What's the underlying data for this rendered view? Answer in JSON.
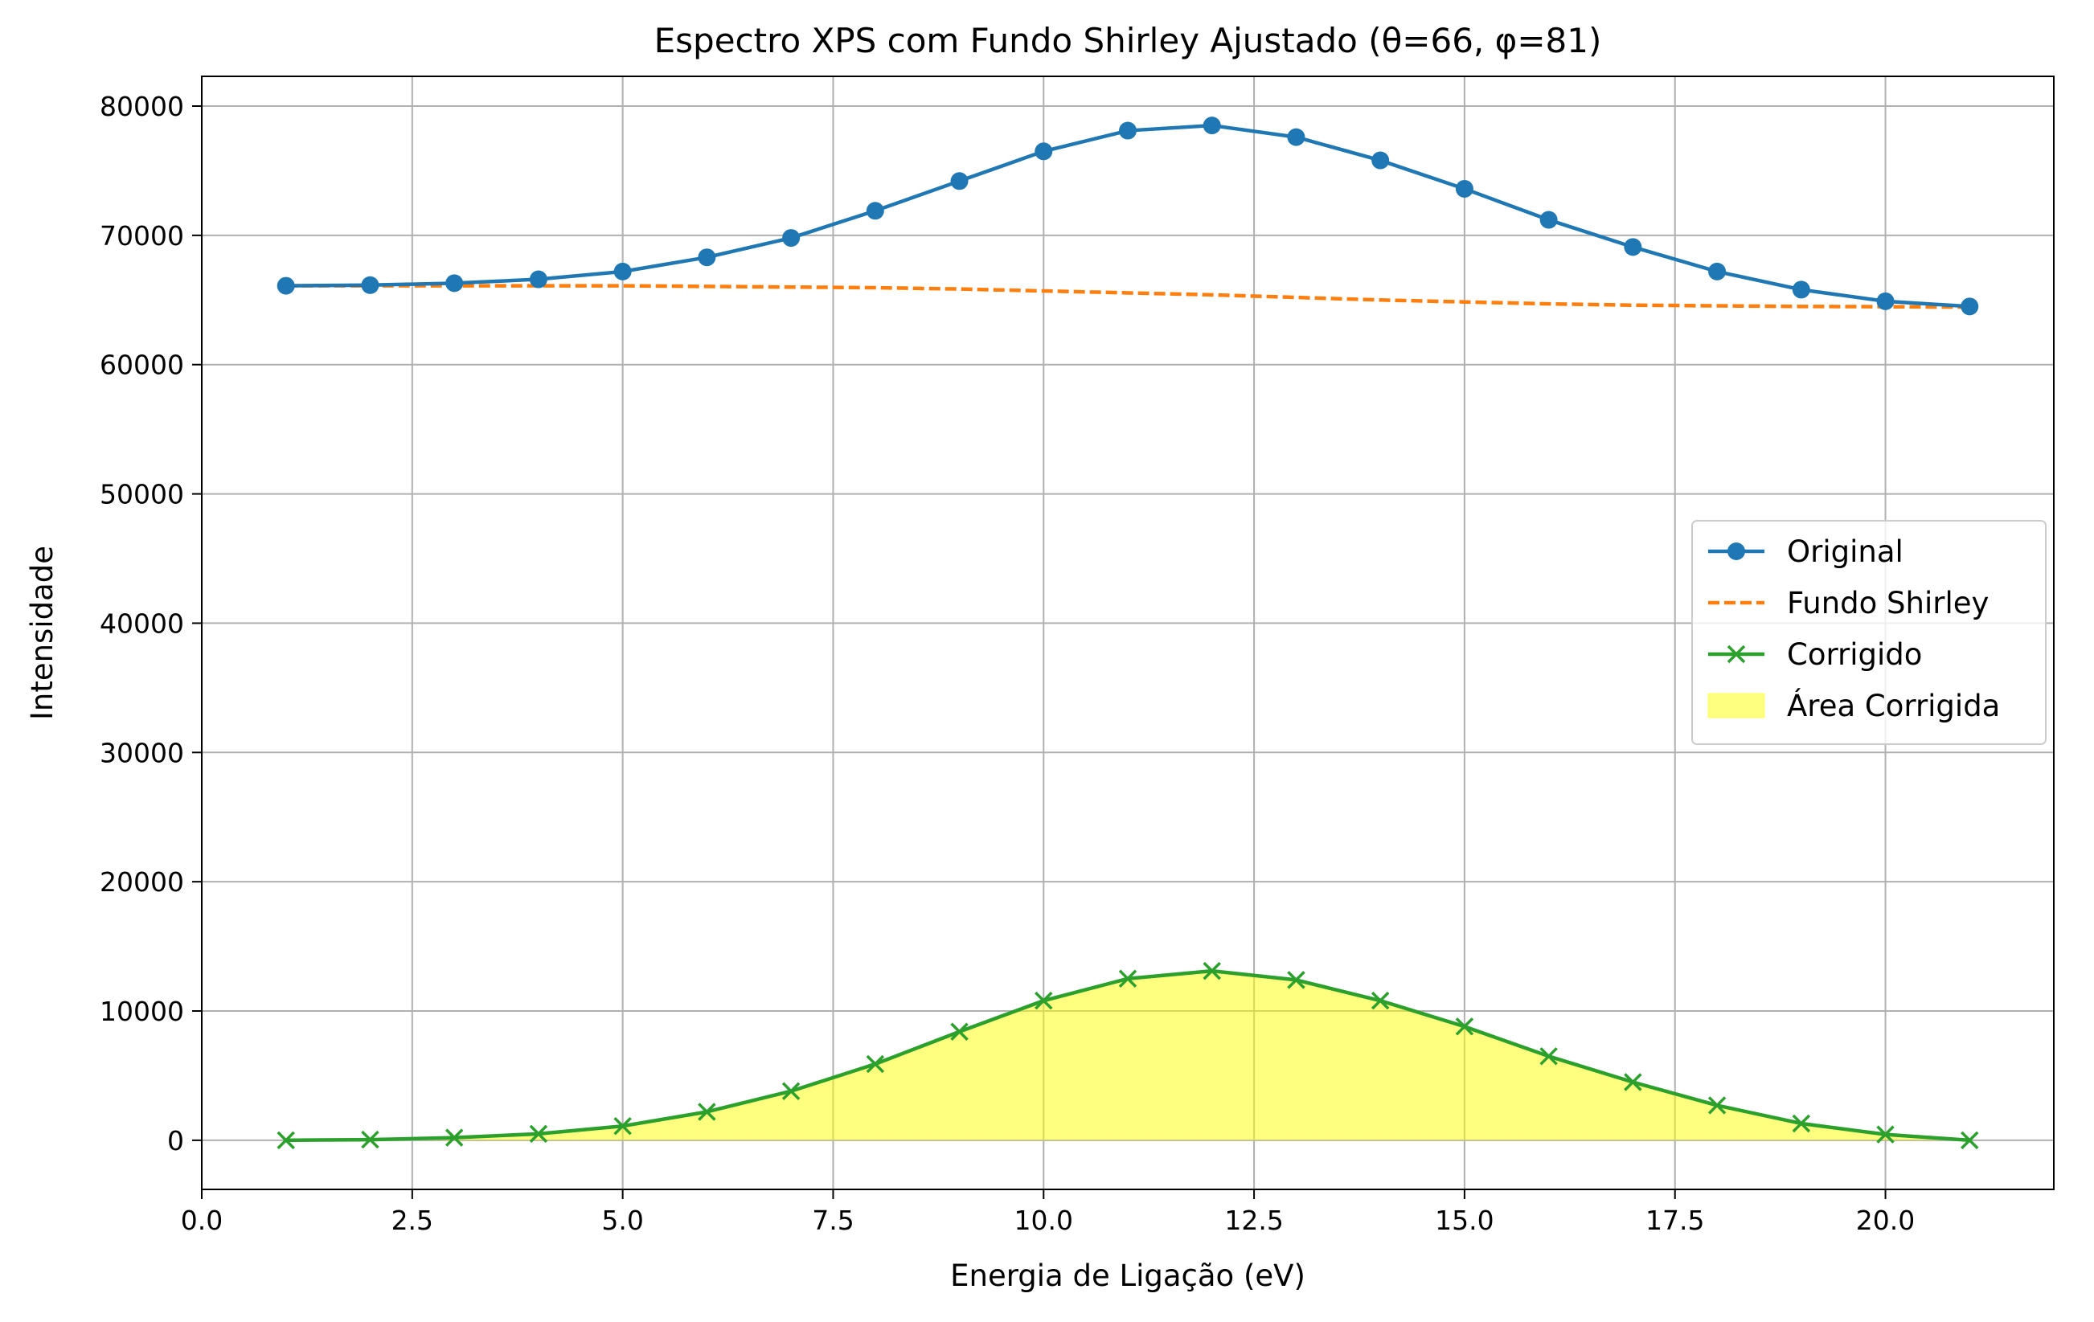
{
  "chart_data": {
    "type": "line",
    "title": "Espectro XPS com Fundo Shirley Ajustado (θ=66, φ=81)",
    "xlabel": "Energia de Ligação (eV)",
    "ylabel": "Intensidade",
    "xlim": [
      0,
      22
    ],
    "ylim": [
      -3800,
      82300
    ],
    "x_ticks": [
      0,
      2.5,
      5,
      7.5,
      10,
      12.5,
      15,
      17.5,
      20
    ],
    "x_tick_labels": [
      "0.0",
      "2.5",
      "5.0",
      "7.5",
      "10.0",
      "12.5",
      "15.0",
      "17.5",
      "20.0"
    ],
    "y_ticks": [
      0,
      10000,
      20000,
      30000,
      40000,
      50000,
      60000,
      70000,
      80000
    ],
    "y_tick_labels": [
      "0",
      "10000",
      "20000",
      "30000",
      "40000",
      "50000",
      "60000",
      "70000",
      "80000"
    ],
    "grid": true,
    "legend_position": "center-right",
    "x": [
      1,
      2,
      3,
      4,
      5,
      6,
      7,
      8,
      9,
      10,
      11,
      12,
      13,
      14,
      15,
      16,
      17,
      18,
      19,
      20,
      21
    ],
    "series": [
      {
        "name": "Original",
        "color": "#1f77b4",
        "line_style": "solid",
        "marker": "circle",
        "values": [
          66100,
          66150,
          66300,
          66600,
          67200,
          68300,
          69800,
          71900,
          74200,
          76500,
          78100,
          78500,
          77600,
          75800,
          73600,
          71200,
          69100,
          67200,
          65800,
          64900,
          64500
        ]
      },
      {
        "name": "Fundo Shirley",
        "color": "#ff7f0e",
        "line_style": "dashed",
        "marker": "none",
        "values": [
          66100,
          66100,
          66100,
          66100,
          66100,
          66050,
          66000,
          65950,
          65850,
          65700,
          65550,
          65400,
          65200,
          65000,
          64850,
          64700,
          64600,
          64550,
          64500,
          64480,
          64450
        ]
      },
      {
        "name": "Corrigido",
        "color": "#2ca02c",
        "line_style": "solid",
        "marker": "x",
        "values": [
          0,
          50,
          200,
          500,
          1100,
          2200,
          3800,
          5900,
          8400,
          10800,
          12500,
          13100,
          12400,
          10800,
          8800,
          6500,
          4500,
          2700,
          1300,
          450,
          0
        ]
      }
    ],
    "fill": {
      "name": "Área Corrigida",
      "color": "#ffff00",
      "opacity": 0.5,
      "between": "Corrigido and 0"
    }
  }
}
